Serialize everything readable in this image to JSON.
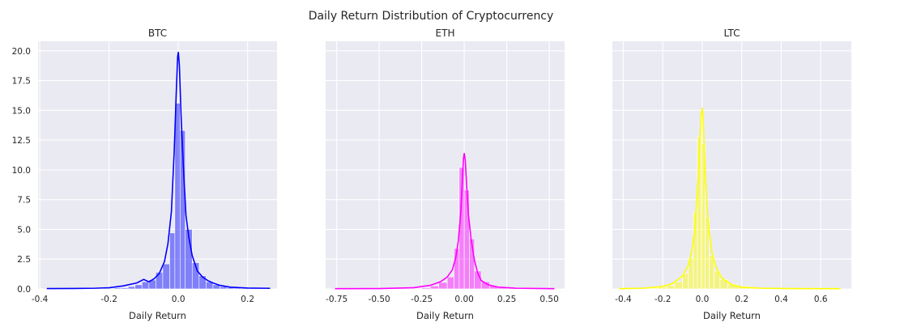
{
  "figure": {
    "title": "Daily Return Distribution of Cryptocurrency",
    "background": "#ffffff",
    "axes_background": "#eaeaf2",
    "grid_color": "#ffffff"
  },
  "chart_data": [
    {
      "type": "histogram",
      "title": "BTC",
      "xlabel": "Daily Return",
      "ylabel": "",
      "color": "#0000ff",
      "xlim": [
        -0.405,
        0.285
      ],
      "ylim": [
        0,
        20.8
      ],
      "xticks": [
        -0.4,
        -0.2,
        0.0,
        0.2
      ],
      "xtick_labels": [
        "-0.4",
        "-0.2",
        "0.0",
        "0.2"
      ],
      "yticks": [
        0,
        2.5,
        5,
        7.5,
        10,
        12.5,
        15,
        17.5,
        20
      ],
      "ytick_labels": [
        "0.0",
        "2.5",
        "5.0",
        "7.5",
        "10.0",
        "12.5",
        "15.0",
        "17.5",
        "20.0"
      ],
      "grid": true,
      "bins": [
        {
          "x0": -0.205,
          "x1": -0.185,
          "density": 0.05
        },
        {
          "x0": -0.185,
          "x1": -0.165,
          "density": 0.1
        },
        {
          "x0": -0.165,
          "x1": -0.145,
          "density": 0.1
        },
        {
          "x0": -0.145,
          "x1": -0.125,
          "density": 0.2
        },
        {
          "x0": -0.125,
          "x1": -0.105,
          "density": 0.35
        },
        {
          "x0": -0.105,
          "x1": -0.085,
          "density": 0.6
        },
        {
          "x0": -0.085,
          "x1": -0.065,
          "density": 0.75
        },
        {
          "x0": -0.065,
          "x1": -0.045,
          "density": 1.4
        },
        {
          "x0": -0.045,
          "x1": -0.025,
          "density": 2.1
        },
        {
          "x0": -0.025,
          "x1": -0.01,
          "density": 4.7
        },
        {
          "x0": -0.01,
          "x1": 0.005,
          "density": 15.6
        },
        {
          "x0": 0.005,
          "x1": 0.02,
          "density": 13.3
        },
        {
          "x0": 0.02,
          "x1": 0.04,
          "density": 5.0
        },
        {
          "x0": 0.04,
          "x1": 0.06,
          "density": 2.2
        },
        {
          "x0": 0.06,
          "x1": 0.08,
          "density": 1.1
        },
        {
          "x0": 0.08,
          "x1": 0.1,
          "density": 0.6
        },
        {
          "x0": 0.1,
          "x1": 0.12,
          "density": 0.35
        },
        {
          "x0": 0.12,
          "x1": 0.14,
          "density": 0.2
        },
        {
          "x0": 0.14,
          "x1": 0.16,
          "density": 0.12
        },
        {
          "x0": 0.16,
          "x1": 0.18,
          "density": 0.08
        },
        {
          "x0": 0.18,
          "x1": 0.2,
          "density": 0.05
        }
      ],
      "kde": {
        "x": [
          -0.38,
          -0.3,
          -0.24,
          -0.2,
          -0.16,
          -0.12,
          -0.1,
          -0.085,
          -0.07,
          -0.055,
          -0.04,
          -0.03,
          -0.02,
          -0.012,
          -0.006,
          -0.002,
          0.0,
          0.003,
          0.008,
          0.015,
          0.022,
          0.03,
          0.04,
          0.055,
          0.07,
          0.085,
          0.1,
          0.12,
          0.15,
          0.2,
          0.265
        ],
        "y": [
          0.03,
          0.04,
          0.06,
          0.1,
          0.25,
          0.5,
          0.8,
          0.6,
          0.85,
          1.3,
          2.3,
          3.8,
          6.5,
          11.5,
          16.5,
          19.5,
          19.9,
          18.8,
          14.5,
          10.0,
          6.2,
          4.4,
          2.8,
          1.5,
          1.0,
          0.7,
          0.5,
          0.3,
          0.15,
          0.07,
          0.05
        ]
      }
    },
    {
      "type": "histogram",
      "title": "ETH",
      "xlabel": "Daily Return",
      "ylabel": "",
      "color": "#ff00ff",
      "xlim": [
        -0.815,
        0.59
      ],
      "ylim": [
        0,
        20.8
      ],
      "xticks": [
        -0.75,
        -0.5,
        -0.25,
        0.0,
        0.25,
        0.5
      ],
      "xtick_labels": [
        "-0.75",
        "-0.50",
        "-0.25",
        "0.00",
        "0.25",
        "0.50"
      ],
      "grid": true,
      "bins": [
        {
          "x0": -0.3,
          "x1": -0.25,
          "density": 0.05
        },
        {
          "x0": -0.25,
          "x1": -0.2,
          "density": 0.1
        },
        {
          "x0": -0.2,
          "x1": -0.15,
          "density": 0.25
        },
        {
          "x0": -0.15,
          "x1": -0.1,
          "density": 0.55
        },
        {
          "x0": -0.1,
          "x1": -0.06,
          "density": 1.0
        },
        {
          "x0": -0.06,
          "x1": -0.03,
          "density": 3.4
        },
        {
          "x0": -0.03,
          "x1": 0.0,
          "density": 10.2
        },
        {
          "x0": 0.0,
          "x1": 0.03,
          "density": 8.3
        },
        {
          "x0": 0.03,
          "x1": 0.06,
          "density": 4.2
        },
        {
          "x0": 0.06,
          "x1": 0.1,
          "density": 1.5
        },
        {
          "x0": 0.1,
          "x1": 0.15,
          "density": 0.6
        },
        {
          "x0": 0.15,
          "x1": 0.2,
          "density": 0.25
        },
        {
          "x0": 0.2,
          "x1": 0.25,
          "density": 0.1
        },
        {
          "x0": 0.25,
          "x1": 0.3,
          "density": 0.05
        }
      ],
      "kde": {
        "x": [
          -0.76,
          -0.5,
          -0.3,
          -0.2,
          -0.14,
          -0.1,
          -0.07,
          -0.05,
          -0.035,
          -0.02,
          -0.01,
          -0.004,
          0.0,
          0.006,
          0.015,
          0.025,
          0.04,
          0.06,
          0.08,
          0.1,
          0.14,
          0.2,
          0.3,
          0.53
        ],
        "y": [
          0.02,
          0.03,
          0.1,
          0.3,
          0.6,
          1.0,
          1.6,
          2.6,
          4.0,
          6.5,
          9.5,
          11.0,
          11.4,
          10.8,
          8.5,
          6.2,
          4.2,
          2.4,
          1.3,
          0.7,
          0.35,
          0.15,
          0.06,
          0.02
        ]
      }
    },
    {
      "type": "histogram",
      "title": "LTC",
      "xlabel": "Daily Return",
      "ylabel": "",
      "color": "#ffff00",
      "xlim": [
        -0.455,
        0.755
      ],
      "ylim": [
        0,
        20.8
      ],
      "xticks": [
        -0.4,
        -0.2,
        0.0,
        0.2,
        0.4,
        0.6
      ],
      "xtick_labels": [
        "-0.4",
        "-0.2",
        "0.0",
        "0.2",
        "0.4",
        "0.6"
      ],
      "grid": true,
      "bins": [
        {
          "x0": -0.3,
          "x1": -0.26,
          "density": 0.05
        },
        {
          "x0": -0.26,
          "x1": -0.22,
          "density": 0.08
        },
        {
          "x0": -0.22,
          "x1": -0.18,
          "density": 0.15
        },
        {
          "x0": -0.18,
          "x1": -0.14,
          "density": 0.3
        },
        {
          "x0": -0.14,
          "x1": -0.1,
          "density": 0.6
        },
        {
          "x0": -0.1,
          "x1": -0.07,
          "density": 1.3
        },
        {
          "x0": -0.07,
          "x1": -0.045,
          "density": 2.6
        },
        {
          "x0": -0.045,
          "x1": -0.025,
          "density": 6.4
        },
        {
          "x0": -0.025,
          "x1": -0.005,
          "density": 12.8
        },
        {
          "x0": -0.005,
          "x1": 0.015,
          "density": 12.2
        },
        {
          "x0": 0.015,
          "x1": 0.035,
          "density": 6.0
        },
        {
          "x0": 0.035,
          "x1": 0.06,
          "density": 2.8
        },
        {
          "x0": 0.06,
          "x1": 0.09,
          "density": 1.5
        },
        {
          "x0": 0.09,
          "x1": 0.13,
          "density": 0.8
        },
        {
          "x0": 0.13,
          "x1": 0.18,
          "density": 0.4
        },
        {
          "x0": 0.18,
          "x1": 0.24,
          "density": 0.2
        },
        {
          "x0": 0.24,
          "x1": 0.3,
          "density": 0.1
        }
      ],
      "kde": {
        "x": [
          -0.42,
          -0.3,
          -0.2,
          -0.15,
          -0.1,
          -0.07,
          -0.05,
          -0.035,
          -0.02,
          -0.01,
          -0.004,
          0.0,
          0.005,
          0.012,
          0.022,
          0.035,
          0.05,
          0.07,
          0.1,
          0.15,
          0.2,
          0.3,
          0.45,
          0.7
        ],
        "y": [
          0.02,
          0.06,
          0.2,
          0.45,
          1.1,
          2.0,
          3.4,
          5.5,
          9.5,
          13.2,
          14.8,
          15.2,
          14.2,
          11.0,
          7.5,
          4.8,
          3.0,
          1.8,
          0.9,
          0.35,
          0.15,
          0.06,
          0.03,
          0.02
        ]
      }
    }
  ]
}
